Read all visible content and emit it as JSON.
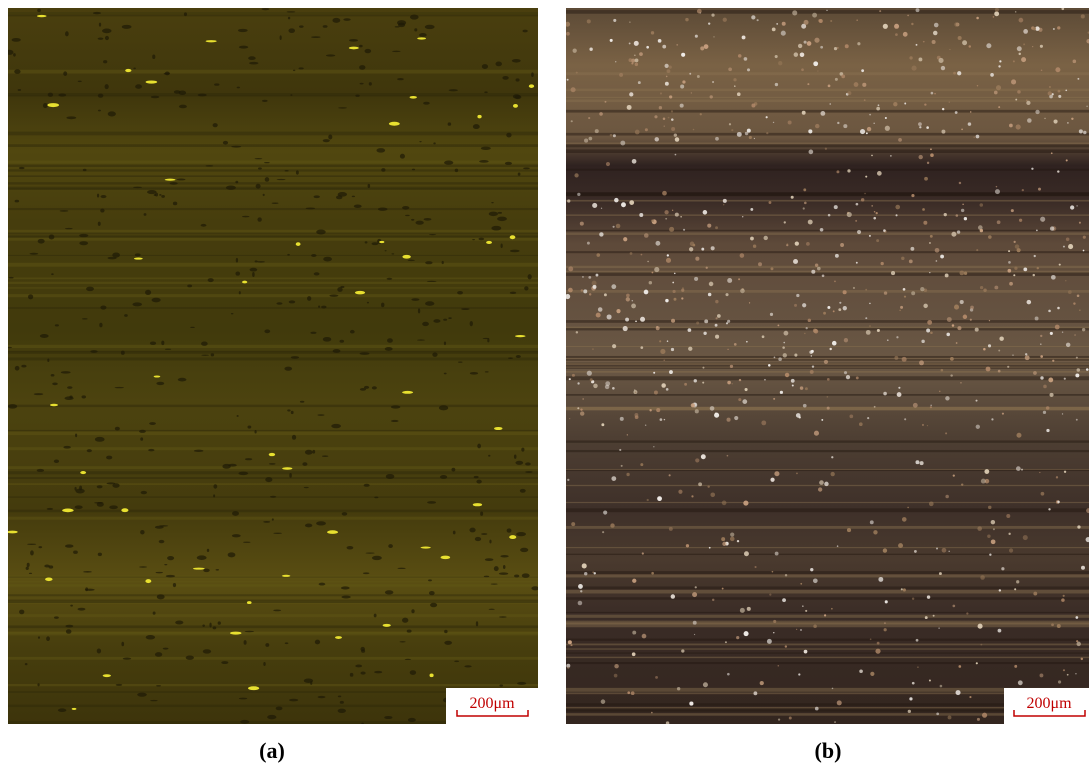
{
  "panels": [
    {
      "label": "(a)",
      "scale_bar": "200μm"
    },
    {
      "label": "(b)",
      "scale_bar": "200μm"
    }
  ]
}
